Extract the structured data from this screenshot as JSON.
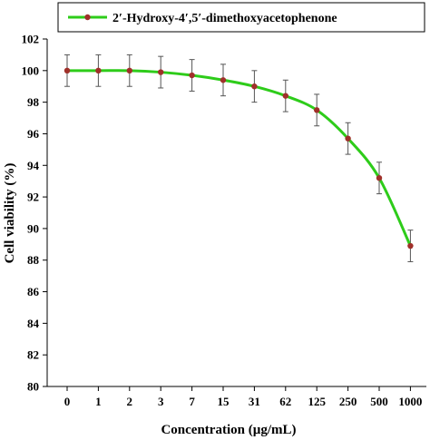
{
  "chart_data": {
    "type": "line",
    "title": "",
    "xlabel": "Concentration (µg/mL)",
    "ylabel": "Cell viability (%)",
    "categories": [
      "0",
      "1",
      "2",
      "3",
      "7",
      "15",
      "31",
      "62",
      "125",
      "250",
      "500",
      "1000"
    ],
    "ylim": [
      80,
      102
    ],
    "yticks": [
      80,
      82,
      84,
      86,
      88,
      90,
      92,
      94,
      96,
      98,
      100,
      102
    ],
    "grid": false,
    "legend_position": "top",
    "series": [
      {
        "name": "2′-Hydroxy-4′,5′-dimethoxyacetophenone",
        "values": [
          100,
          100,
          100,
          99.9,
          99.7,
          99.4,
          99.0,
          98.4,
          97.5,
          95.7,
          93.2,
          88.9
        ],
        "error": [
          1.0,
          1.0,
          1.0,
          1.0,
          1.0,
          1.0,
          1.0,
          1.0,
          1.0,
          1.0,
          1.0,
          1.0
        ]
      }
    ],
    "colors": {
      "line": "#2ecc1a",
      "marker": "#a0302a",
      "error_bar": "#555555"
    }
  }
}
